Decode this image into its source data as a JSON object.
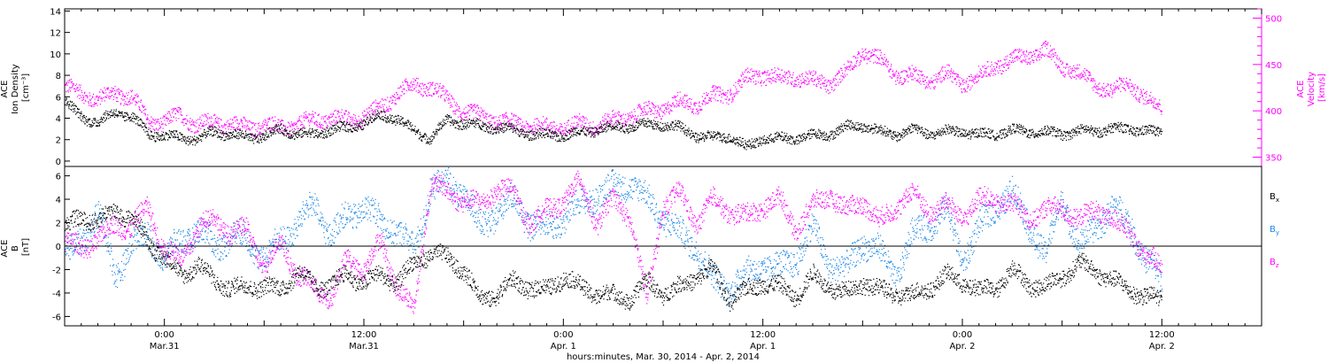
{
  "colors": {
    "black": "#000000",
    "magenta": "#ff00ff",
    "blue": "#1e88e5",
    "axis": "#000000"
  },
  "x_axis_title": "hours:minutes, Mar. 30, 2014 - Apr. 2, 2014",
  "chart_data": [
    {
      "type": "scatter",
      "panel": "top",
      "xlim": [
        -6,
        66
      ],
      "ylabel": [
        "ACE",
        "Ion Density",
        "[cm⁻³]"
      ],
      "ylim": [
        -0.5,
        14.2
      ],
      "yticks": [
        0,
        2,
        4,
        6,
        8,
        10,
        12,
        14
      ],
      "y2label": [
        "ACE",
        "Velocity",
        "[km/s]"
      ],
      "y2lim": [
        340,
        510
      ],
      "y2ticks": [
        350,
        400,
        450,
        500
      ],
      "series": [
        {
          "color": "#000000",
          "axis": "left",
          "x": [
            -6,
            -5,
            -4,
            -3,
            -2,
            -1,
            0,
            1,
            2,
            3,
            4,
            5,
            6,
            7,
            8,
            9,
            10,
            11,
            12,
            13,
            14,
            15,
            16,
            17,
            18,
            19,
            20,
            21,
            22,
            23,
            24,
            25,
            26,
            27,
            28,
            29,
            30,
            31,
            32,
            33,
            34,
            35,
            36,
            37,
            38,
            39,
            40,
            41,
            42,
            43,
            44,
            45,
            46,
            47,
            48,
            49,
            50,
            51,
            52,
            53,
            54,
            55,
            56,
            57,
            58,
            59,
            60
          ],
          "y": [
            5.5,
            4.2,
            3.6,
            4.6,
            4.2,
            2.6,
            2.4,
            2.2,
            2.1,
            2.8,
            2.5,
            2.2,
            2.4,
            3.0,
            2.6,
            2.5,
            3.0,
            3.1,
            3.6,
            4.3,
            4.0,
            2.8,
            2.2,
            3.8,
            3.6,
            3.3,
            3.2,
            2.9,
            2.6,
            2.4,
            2.5,
            2.7,
            3.0,
            3.2,
            3.3,
            3.4,
            3.5,
            3.1,
            2.4,
            2.2,
            2.4,
            1.3,
            2.2,
            2.1,
            2.2,
            2.4,
            2.6,
            3.2,
            3.4,
            2.8,
            2.5,
            3.0,
            2.6,
            2.8,
            2.8,
            2.5,
            2.6,
            2.9,
            2.8,
            2.7,
            2.6,
            2.8,
            2.9,
            3.0,
            3.1,
            2.8,
            2.7
          ]
        },
        {
          "color": "#ff00ff",
          "axis": "right",
          "x": [
            -6,
            -5,
            -4,
            -3,
            -2,
            -1,
            0,
            1,
            2,
            3,
            4,
            5,
            6,
            7,
            8,
            9,
            10,
            11,
            12,
            13,
            14,
            15,
            16,
            17,
            18,
            19,
            20,
            21,
            22,
            23,
            24,
            25,
            26,
            27,
            28,
            29,
            30,
            31,
            32,
            33,
            34,
            35,
            36,
            37,
            38,
            39,
            40,
            41,
            42,
            43,
            44,
            45,
            46,
            47,
            48,
            49,
            50,
            51,
            52,
            53,
            54,
            55,
            56,
            57,
            58,
            59,
            60
          ],
          "y": [
            425,
            420,
            412,
            420,
            416,
            390,
            388,
            396,
            385,
            388,
            386,
            382,
            385,
            382,
            386,
            390,
            393,
            390,
            395,
            403,
            420,
            428,
            427,
            412,
            400,
            394,
            390,
            386,
            385,
            382,
            383,
            386,
            385,
            390,
            395,
            400,
            403,
            410,
            408,
            416,
            420,
            435,
            440,
            435,
            438,
            432,
            430,
            442,
            465,
            455,
            440,
            438,
            433,
            440,
            430,
            438,
            450,
            455,
            460,
            465,
            450,
            440,
            430,
            420,
            432,
            412,
            405
          ]
        }
      ]
    },
    {
      "type": "scatter",
      "panel": "bottom",
      "xlim": [
        -6,
        66
      ],
      "xticks": [
        0,
        12,
        24,
        36,
        48,
        60
      ],
      "xtick_labels": [
        [
          "0:00",
          "Mar.31"
        ],
        [
          "12:00",
          "Mar.31"
        ],
        [
          "0:00",
          "Apr. 1"
        ],
        [
          "12:00",
          "Apr. 1"
        ],
        [
          "0:00",
          "Apr. 2"
        ],
        [
          "12:00",
          "Apr. 2"
        ]
      ],
      "ylabel": [
        "ACE",
        "B",
        "[nT]"
      ],
      "ylim": [
        -6.8,
        6.8
      ],
      "yticks": [
        -6,
        -4,
        -2,
        0,
        2,
        4,
        6
      ],
      "legend_position": "right",
      "zero_line": true,
      "series": [
        {
          "name": "Bx",
          "label_main": "B",
          "label_sub": "x",
          "color": "#000000",
          "x": [
            -6,
            -5,
            -4,
            -3,
            -2,
            -1,
            0,
            1,
            2,
            3,
            4,
            5,
            6,
            7,
            8,
            9,
            10,
            11,
            12,
            13,
            14,
            15,
            16,
            17,
            18,
            19,
            20,
            21,
            22,
            23,
            24,
            25,
            26,
            27,
            28,
            29,
            30,
            31,
            32,
            33,
            34,
            35,
            36,
            37,
            38,
            39,
            40,
            41,
            42,
            43,
            44,
            45,
            46,
            47,
            48,
            49,
            50,
            51,
            52,
            53,
            54,
            55,
            56,
            57,
            58,
            59,
            60
          ],
          "y": [
            1.5,
            2.5,
            2.2,
            3.0,
            2.5,
            0.5,
            -1.0,
            -2.5,
            -1.5,
            -3.0,
            -3.5,
            -3.5,
            -3.3,
            -3.8,
            -2.0,
            -3.5,
            -3.2,
            -2.5,
            -3.0,
            -2.5,
            -3.0,
            -1.5,
            -0.5,
            -1.0,
            -2.0,
            -4.5,
            -4.0,
            -3.0,
            -3.5,
            -3.8,
            -2.5,
            -3.5,
            -4.0,
            -4.2,
            -4.5,
            -3.0,
            -4.0,
            -3.5,
            -2.5,
            -2.0,
            -4.5,
            -3.8,
            -3.0,
            -3.5,
            -4.2,
            -2.5,
            -3.5,
            -4.0,
            -3.0,
            -3.8,
            -4.0,
            -4.2,
            -3.5,
            -2.5,
            -3.0,
            -3.8,
            -3.5,
            -2.0,
            -3.2,
            -3.5,
            -2.5,
            -1.5,
            -2.0,
            -3.0,
            -3.5,
            -4.5,
            -4.3
          ]
        },
        {
          "name": "By",
          "label_main": "B",
          "label_sub": "y",
          "color": "#1e88e5",
          "x": [
            -6,
            -5,
            -4,
            -3,
            -2,
            -1,
            0,
            1,
            2,
            3,
            4,
            5,
            6,
            7,
            8,
            9,
            10,
            11,
            12,
            13,
            14,
            15,
            16,
            17,
            18,
            19,
            20,
            21,
            22,
            23,
            24,
            25,
            26,
            27,
            28,
            29,
            30,
            31,
            32,
            33,
            34,
            35,
            36,
            37,
            38,
            39,
            40,
            41,
            42,
            43,
            44,
            45,
            46,
            47,
            48,
            49,
            50,
            51,
            52,
            53,
            54,
            55,
            56,
            57,
            58,
            59,
            60
          ],
          "y": [
            -1.0,
            0.5,
            3.0,
            -2.5,
            0.2,
            1.0,
            -1.0,
            0.5,
            1.5,
            0.0,
            1.0,
            0.5,
            -1.0,
            0.5,
            2.0,
            3.5,
            1.0,
            2.5,
            3.5,
            2.0,
            1.5,
            -0.5,
            5.0,
            5.5,
            4.5,
            1.5,
            3.0,
            4.0,
            2.0,
            1.5,
            2.5,
            3.5,
            4.5,
            5.0,
            5.5,
            4.0,
            2.5,
            1.0,
            0.0,
            -3.0,
            -3.5,
            -2.5,
            -1.5,
            -2.0,
            -1.0,
            1.5,
            -1.5,
            -2.0,
            0.5,
            -0.5,
            -2.5,
            1.0,
            2.0,
            3.0,
            -1.0,
            1.5,
            3.5,
            4.5,
            2.0,
            -1.0,
            4.5,
            -0.5,
            2.0,
            3.0,
            2.5,
            -1.5,
            -2.5
          ]
        },
        {
          "name": "Bz",
          "label_main": "B",
          "label_sub": "z",
          "color": "#ff00ff",
          "x": [
            -6,
            -5,
            -4,
            -3,
            -2,
            -1,
            0,
            1,
            2,
            3,
            4,
            5,
            6,
            7,
            8,
            9,
            10,
            11,
            12,
            13,
            14,
            15,
            16,
            17,
            18,
            19,
            20,
            21,
            22,
            23,
            24,
            25,
            26,
            27,
            28,
            29,
            30,
            31,
            32,
            33,
            34,
            35,
            36,
            37,
            38,
            39,
            40,
            41,
            42,
            43,
            44,
            45,
            46,
            47,
            48,
            49,
            50,
            51,
            52,
            53,
            54,
            55,
            56,
            57,
            58,
            59,
            60
          ],
          "y": [
            0.2,
            0.0,
            0.5,
            2.0,
            1.5,
            3.5,
            -0.5,
            -1.0,
            1.5,
            2.5,
            1.0,
            1.5,
            -2.0,
            0.5,
            -2.5,
            -3.5,
            -4.5,
            -1.0,
            -2.0,
            0.5,
            -3.5,
            -5.5,
            5.5,
            4.5,
            4.0,
            3.5,
            5.0,
            4.5,
            2.0,
            3.0,
            4.0,
            5.5,
            2.0,
            4.0,
            2.5,
            -4.5,
            3.5,
            4.5,
            2.0,
            4.0,
            3.0,
            2.5,
            3.5,
            4.0,
            1.5,
            3.5,
            4.5,
            3.0,
            4.0,
            2.0,
            3.5,
            4.5,
            3.0,
            3.5,
            2.5,
            4.0,
            4.0,
            3.5,
            2.5,
            3.0,
            3.5,
            2.0,
            3.5,
            2.0,
            1.5,
            -1.0,
            -1.5
          ]
        }
      ]
    }
  ]
}
